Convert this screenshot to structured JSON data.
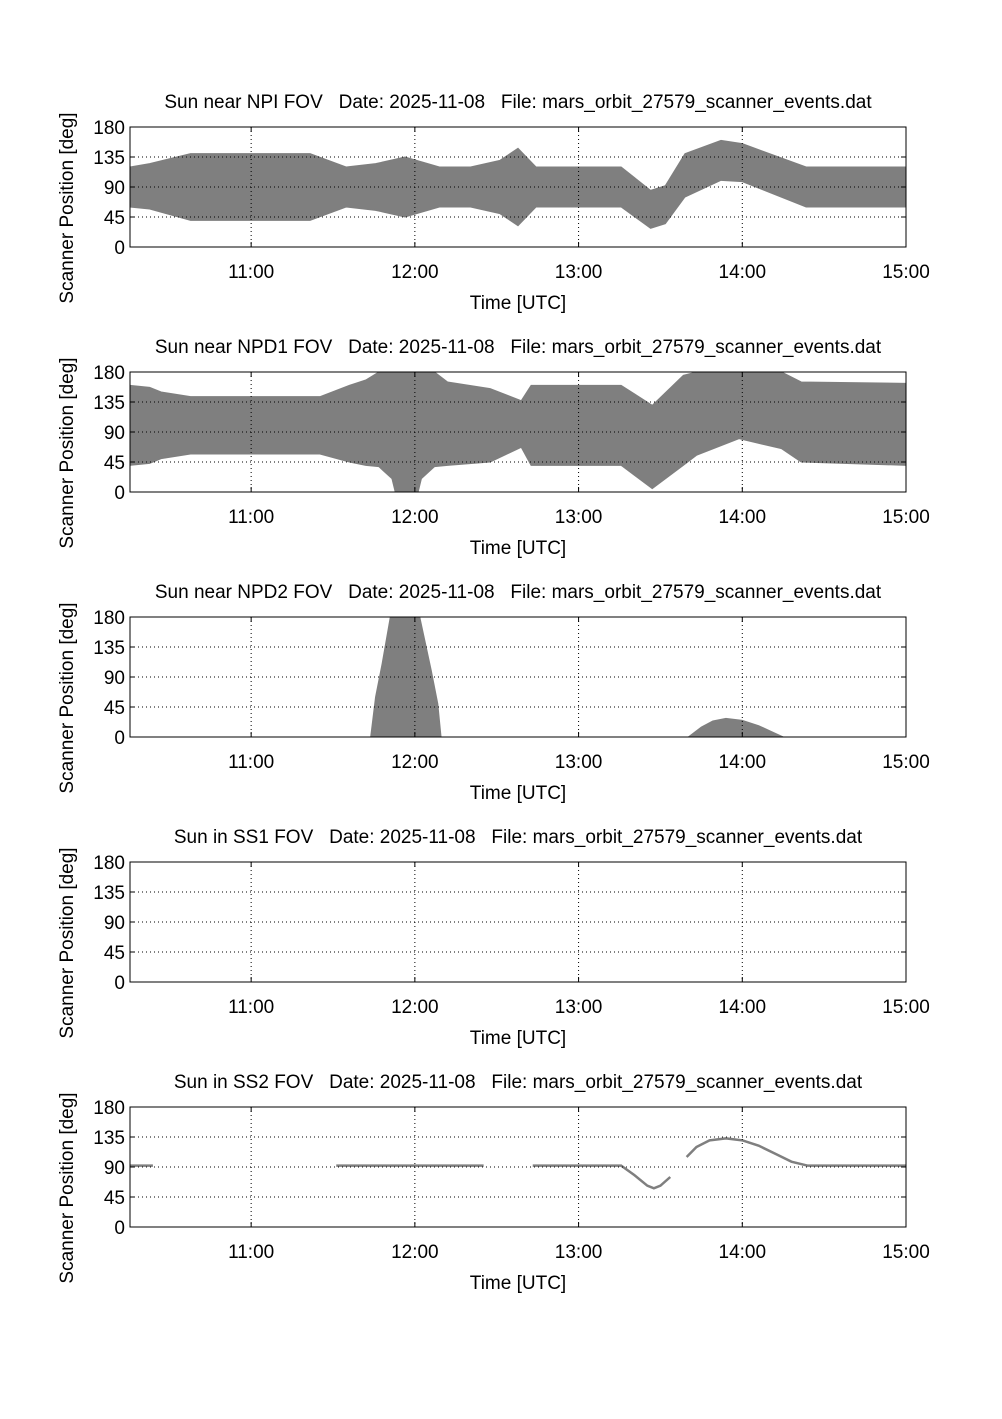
{
  "chart_data": [
    {
      "type": "area",
      "title": "Sun near NPI FOV   Date: 2025-11-08   File: mars_orbit_27579_scanner_events.dat",
      "xlabel": "Time [UTC]",
      "ylabel": "Scanner Position [deg]",
      "xlim": [
        10.26,
        15.0
      ],
      "ylim": [
        0,
        180
      ],
      "xticks": [
        11,
        12,
        13,
        14,
        15
      ],
      "xtick_labels": [
        "11:00",
        "12:00",
        "13:00",
        "14:00",
        "15:00"
      ],
      "yticks": [
        0,
        45,
        90,
        135,
        180
      ],
      "ytick_labels": [
        "0",
        "45",
        "90",
        "135",
        "180"
      ],
      "grid": true,
      "color": "#7f7f7f",
      "bands": [
        {
          "x": [
            10.26,
            10.38,
            10.63,
            11.36,
            11.58,
            11.76,
            11.94,
            12.15,
            12.34,
            12.52,
            12.63,
            12.74,
            13.26,
            13.44,
            13.53,
            13.65,
            13.87,
            14.0,
            14.39,
            15.0
          ],
          "upper": [
            120,
            125,
            140,
            140,
            120,
            125,
            135,
            120,
            120,
            130,
            148,
            120,
            120,
            85,
            92,
            140,
            160,
            155,
            120,
            120
          ],
          "lower": [
            60,
            57,
            40,
            40,
            60,
            55,
            45,
            60,
            60,
            50,
            32,
            60,
            60,
            28,
            35,
            75,
            100,
            98,
            60,
            60
          ]
        }
      ]
    },
    {
      "type": "area",
      "title": "Sun near NPD1 FOV   Date: 2025-11-08   File: mars_orbit_27579_scanner_events.dat",
      "xlabel": "Time [UTC]",
      "ylabel": "Scanner Position [deg]",
      "xlim": [
        10.26,
        15.0
      ],
      "ylim": [
        0,
        180
      ],
      "xticks": [
        11,
        12,
        13,
        14,
        15
      ],
      "xtick_labels": [
        "11:00",
        "12:00",
        "13:00",
        "14:00",
        "15:00"
      ],
      "yticks": [
        0,
        45,
        90,
        135,
        180
      ],
      "ytick_labels": [
        "0",
        "45",
        "90",
        "135",
        "180"
      ],
      "grid": true,
      "color": "#7f7f7f",
      "bands": [
        {
          "x": [
            10.26,
            10.38,
            10.45,
            10.63,
            11.42,
            11.6,
            11.7,
            11.78,
            11.86,
            11.88,
            12.02,
            12.04,
            12.12,
            12.2,
            12.46,
            12.65,
            12.71,
            13.26,
            13.45,
            13.64,
            13.72,
            13.98,
            14.24,
            14.36,
            15.0
          ],
          "upper": [
            160,
            157,
            150,
            143,
            143,
            160,
            168,
            180,
            180,
            180,
            180,
            180,
            180,
            165,
            155,
            137,
            160,
            160,
            130,
            175,
            180,
            180,
            180,
            165,
            163
          ],
          "lower": [
            40,
            43,
            50,
            57,
            57,
            45,
            40,
            38,
            20,
            0,
            0,
            20,
            38,
            40,
            45,
            67,
            40,
            40,
            5,
            40,
            55,
            80,
            65,
            45,
            40
          ]
        }
      ]
    },
    {
      "type": "area",
      "title": "Sun near NPD2 FOV   Date: 2025-11-08   File: mars_orbit_27579_scanner_events.dat",
      "xlabel": "Time [UTC]",
      "ylabel": "Scanner Position [deg]",
      "xlim": [
        10.26,
        15.0
      ],
      "ylim": [
        0,
        180
      ],
      "xticks": [
        11,
        12,
        13,
        14,
        15
      ],
      "xtick_labels": [
        "11:00",
        "12:00",
        "13:00",
        "14:00",
        "15:00"
      ],
      "yticks": [
        0,
        45,
        90,
        135,
        180
      ],
      "ytick_labels": [
        "0",
        "45",
        "90",
        "135",
        "180"
      ],
      "grid": true,
      "color": "#7f7f7f",
      "bands": [
        {
          "x": [
            11.73,
            11.76,
            11.8,
            11.85,
            12.03,
            12.1,
            12.14,
            12.16
          ],
          "upper": [
            0,
            60,
            110,
            180,
            180,
            100,
            50,
            0
          ],
          "lower": [
            0,
            0,
            0,
            0,
            0,
            0,
            0,
            0
          ]
        },
        {
          "x": [
            13.67,
            13.75,
            13.82,
            13.9,
            14.0,
            14.1,
            14.18,
            14.25
          ],
          "upper": [
            0,
            15,
            24,
            28,
            25,
            17,
            8,
            0
          ],
          "lower": [
            0,
            0,
            0,
            0,
            0,
            0,
            0,
            0
          ]
        }
      ]
    },
    {
      "type": "area",
      "title": "Sun in SS1 FOV   Date: 2025-11-08   File: mars_orbit_27579_scanner_events.dat",
      "xlabel": "Time [UTC]",
      "ylabel": "Scanner Position [deg]",
      "xlim": [
        10.26,
        15.0
      ],
      "ylim": [
        0,
        180
      ],
      "xticks": [
        11,
        12,
        13,
        14,
        15
      ],
      "xtick_labels": [
        "11:00",
        "12:00",
        "13:00",
        "14:00",
        "15:00"
      ],
      "yticks": [
        0,
        45,
        90,
        135,
        180
      ],
      "ytick_labels": [
        "0",
        "45",
        "90",
        "135",
        "180"
      ],
      "grid": true,
      "color": "#7f7f7f",
      "bands": []
    },
    {
      "type": "line",
      "title": "Sun in SS2 FOV   Date: 2025-11-08   File: mars_orbit_27579_scanner_events.dat",
      "xlabel": "Time [UTC]",
      "ylabel": "Scanner Position [deg]",
      "xlim": [
        10.26,
        15.0
      ],
      "ylim": [
        0,
        180
      ],
      "xticks": [
        11,
        12,
        13,
        14,
        15
      ],
      "xtick_labels": [
        "11:00",
        "12:00",
        "13:00",
        "14:00",
        "15:00"
      ],
      "yticks": [
        0,
        45,
        90,
        135,
        180
      ],
      "ytick_labels": [
        "0",
        "45",
        "90",
        "135",
        "180"
      ],
      "grid": true,
      "color": "#7f7f7f",
      "lines": [
        {
          "x": [
            10.26,
            10.4
          ],
          "y": [
            92,
            92
          ]
        },
        {
          "x": [
            11.52,
            12.42
          ],
          "y": [
            92,
            92
          ]
        },
        {
          "x": [
            12.72,
            13.26,
            13.34,
            13.42,
            13.46,
            13.5,
            13.56
          ],
          "y": [
            92,
            92,
            78,
            62,
            58,
            62,
            75
          ]
        },
        {
          "x": [
            13.66,
            13.72,
            13.8,
            13.9,
            14.0,
            14.1,
            14.2,
            14.3,
            14.4,
            14.5,
            15.0
          ],
          "y": [
            105,
            120,
            130,
            133,
            130,
            122,
            110,
            98,
            92,
            92,
            92
          ]
        }
      ]
    }
  ]
}
